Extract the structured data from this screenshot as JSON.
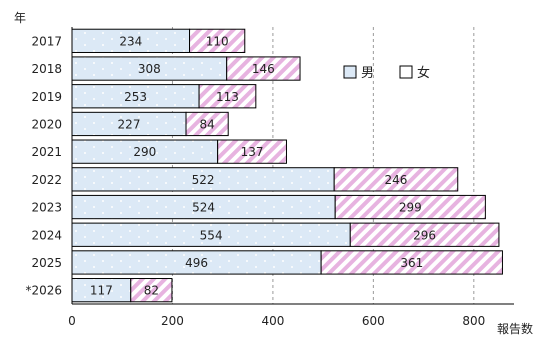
{
  "chart_data": {
    "type": "bar",
    "orientation": "horizontal",
    "stacked": true,
    "ylabel": "年",
    "xlabel": "報告数",
    "categories": [
      "2017",
      "2018",
      "2019",
      "2020",
      "2021",
      "2022",
      "2023",
      "2024",
      "2025",
      "*2026"
    ],
    "series": [
      {
        "name": "男",
        "values": [
          234,
          308,
          253,
          227,
          290,
          522,
          524,
          554,
          496,
          117
        ]
      },
      {
        "name": "女",
        "values": [
          110,
          146,
          113,
          84,
          137,
          246,
          299,
          296,
          361,
          82
        ]
      }
    ],
    "xlim": [
      0,
      880
    ],
    "xticks": [
      0,
      200,
      400,
      600,
      800
    ],
    "grid": "vertical dashed",
    "legend_position": "top-right (inside plot)",
    "data_labels": true
  },
  "colors": {
    "male_fill": "#dce9f6",
    "male_dots": "#ffffff",
    "female_fill": "#ffffff",
    "female_stripe": "#e7b3e0",
    "bar_stroke": "#000000",
    "axis": "#000000",
    "grid": "#9a9a9a",
    "text": "#222222"
  }
}
